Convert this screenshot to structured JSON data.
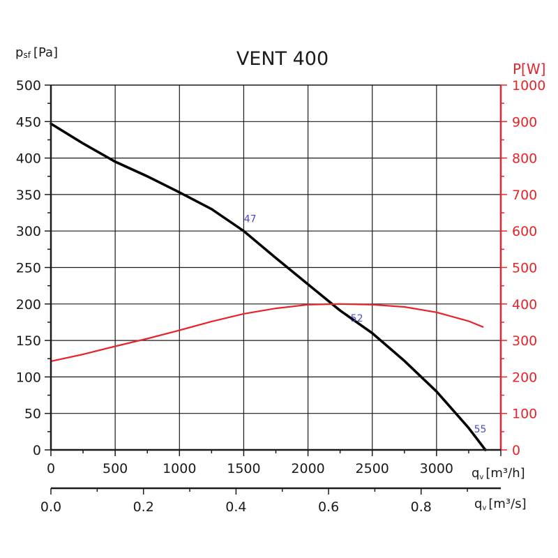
{
  "chart_data": {
    "type": "line",
    "title": "VENT 400",
    "grid": true,
    "y_left": {
      "label_main": "p",
      "label_sub": "sf",
      "label_unit": "[Pa]",
      "range": [
        0,
        500
      ],
      "ticks": [
        "0",
        "50",
        "100",
        "150",
        "200",
        "250",
        "300",
        "350",
        "400",
        "450",
        "500"
      ]
    },
    "y_right": {
      "label": "P[W]",
      "range": [
        0,
        1000
      ],
      "ticks": [
        "0",
        "100",
        "200",
        "300",
        "400",
        "500",
        "600",
        "700",
        "800",
        "900",
        "1000"
      ]
    },
    "x_primary": {
      "label_main": "q",
      "label_sub": "v",
      "label_unit": "[m³/h]",
      "range": [
        0,
        3500
      ],
      "ticks": [
        "0",
        "500",
        "1000",
        "1500",
        "2000",
        "2500",
        "3000"
      ]
    },
    "x_secondary": {
      "label_main": "q",
      "label_sub": "v",
      "label_unit": "[m³/s]",
      "range": [
        0,
        0.9722
      ],
      "ticks": [
        "0.0",
        "0.2",
        "0.4",
        "0.6",
        "0.8"
      ]
    },
    "series": [
      {
        "axis": "left",
        "color": "#000000",
        "x": [
          0,
          250,
          500,
          750,
          1000,
          1250,
          1500,
          1750,
          2000,
          2250,
          2500,
          2750,
          3000,
          3250,
          3380
        ],
        "y": [
          447,
          420,
          395,
          375,
          353,
          330,
          300,
          263,
          227,
          191,
          160,
          122,
          80,
          30,
          0
        ]
      },
      {
        "axis": "right",
        "color": "#e8232a",
        "x": [
          0,
          250,
          500,
          750,
          1000,
          1250,
          1500,
          1750,
          2000,
          2250,
          2500,
          2750,
          3000,
          3250,
          3360
        ],
        "y": [
          243,
          262,
          284,
          305,
          328,
          352,
          373,
          388,
          398,
          400,
          398,
          392,
          377,
          353,
          337
        ]
      }
    ],
    "annotations": [
      {
        "text": "47",
        "x": 1550,
        "y": 312,
        "color": "#4a4ad0"
      },
      {
        "text": "52",
        "x": 2380,
        "y": 176,
        "color": "#4a4ad0"
      },
      {
        "text": "55",
        "x": 3340,
        "y": 24,
        "color": "#4a4ad0"
      }
    ]
  }
}
